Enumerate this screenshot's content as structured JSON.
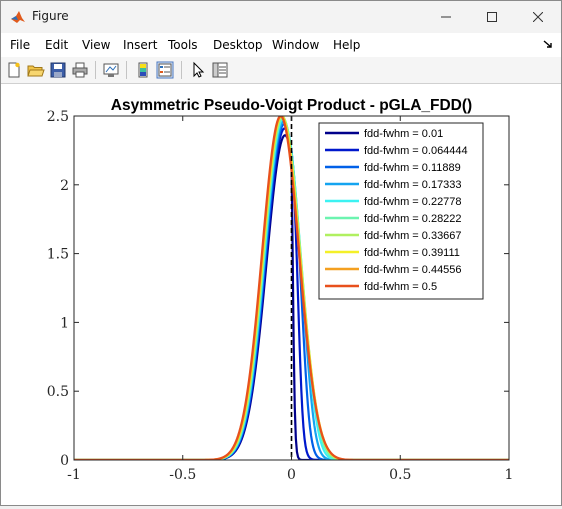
{
  "window": {
    "title": "Figure"
  },
  "menu": {
    "items": [
      "File",
      "Edit",
      "View",
      "Insert",
      "Tools",
      "Desktop",
      "Window",
      "Help"
    ]
  },
  "toolbar": {
    "buttons": [
      "new-figure-icon",
      "open-file-icon",
      "save-icon",
      "print-icon",
      "link-plot-icon",
      "colorbar-icon",
      "legend-icon",
      "pointer-icon",
      "property-inspector-icon"
    ]
  },
  "chart_data": {
    "type": "line",
    "title": "Asymmetric Pseudo-Voigt Product - pGLA_FDD()",
    "xlabel": "",
    "ylabel": "",
    "xlim": [
      -1,
      1
    ],
    "ylim": [
      0,
      2.5
    ],
    "x_ticks": [
      "-1",
      "-0.5",
      "0",
      "0.5",
      "1"
    ],
    "y_ticks": [
      "0",
      "0.5",
      "1",
      "1.5",
      "2",
      "2.5"
    ],
    "legend_position": "top-right",
    "grid": false,
    "peak_marker_x": 0,
    "gaussian_fwhm": 0.2,
    "series": [
      {
        "name": "fdd-fwhm = 0.01",
        "fdd_fwhm": 0.01,
        "peak": 2.36,
        "color": "#00008b"
      },
      {
        "name": "fdd-fwhm = 0.064444",
        "fdd_fwhm": 0.064444,
        "peak": 2.41,
        "color": "#0018cc"
      },
      {
        "name": "fdd-fwhm = 0.11889",
        "fdd_fwhm": 0.11889,
        "peak": 2.44,
        "color": "#0060e8"
      },
      {
        "name": "fdd-fwhm = 0.17333",
        "fdd_fwhm": 0.17333,
        "peak": 2.46,
        "color": "#14a4f0"
      },
      {
        "name": "fdd-fwhm = 0.22778",
        "fdd_fwhm": 0.22778,
        "peak": 2.48,
        "color": "#3cf2f2"
      },
      {
        "name": "fdd-fwhm = 0.28222",
        "fdd_fwhm": 0.28222,
        "peak": 2.49,
        "color": "#6cf4b0"
      },
      {
        "name": "fdd-fwhm = 0.33667",
        "fdd_fwhm": 0.33667,
        "peak": 2.5,
        "color": "#b0f060"
      },
      {
        "name": "fdd-fwhm = 0.39111",
        "fdd_fwhm": 0.39111,
        "peak": 2.5,
        "color": "#f4f028"
      },
      {
        "name": "fdd-fwhm = 0.44556",
        "fdd_fwhm": 0.44556,
        "peak": 2.5,
        "color": "#f4a020"
      },
      {
        "name": "fdd-fwhm = 0.5",
        "fdd_fwhm": 0.5,
        "peak": 2.5,
        "color": "#e8501c"
      }
    ]
  }
}
